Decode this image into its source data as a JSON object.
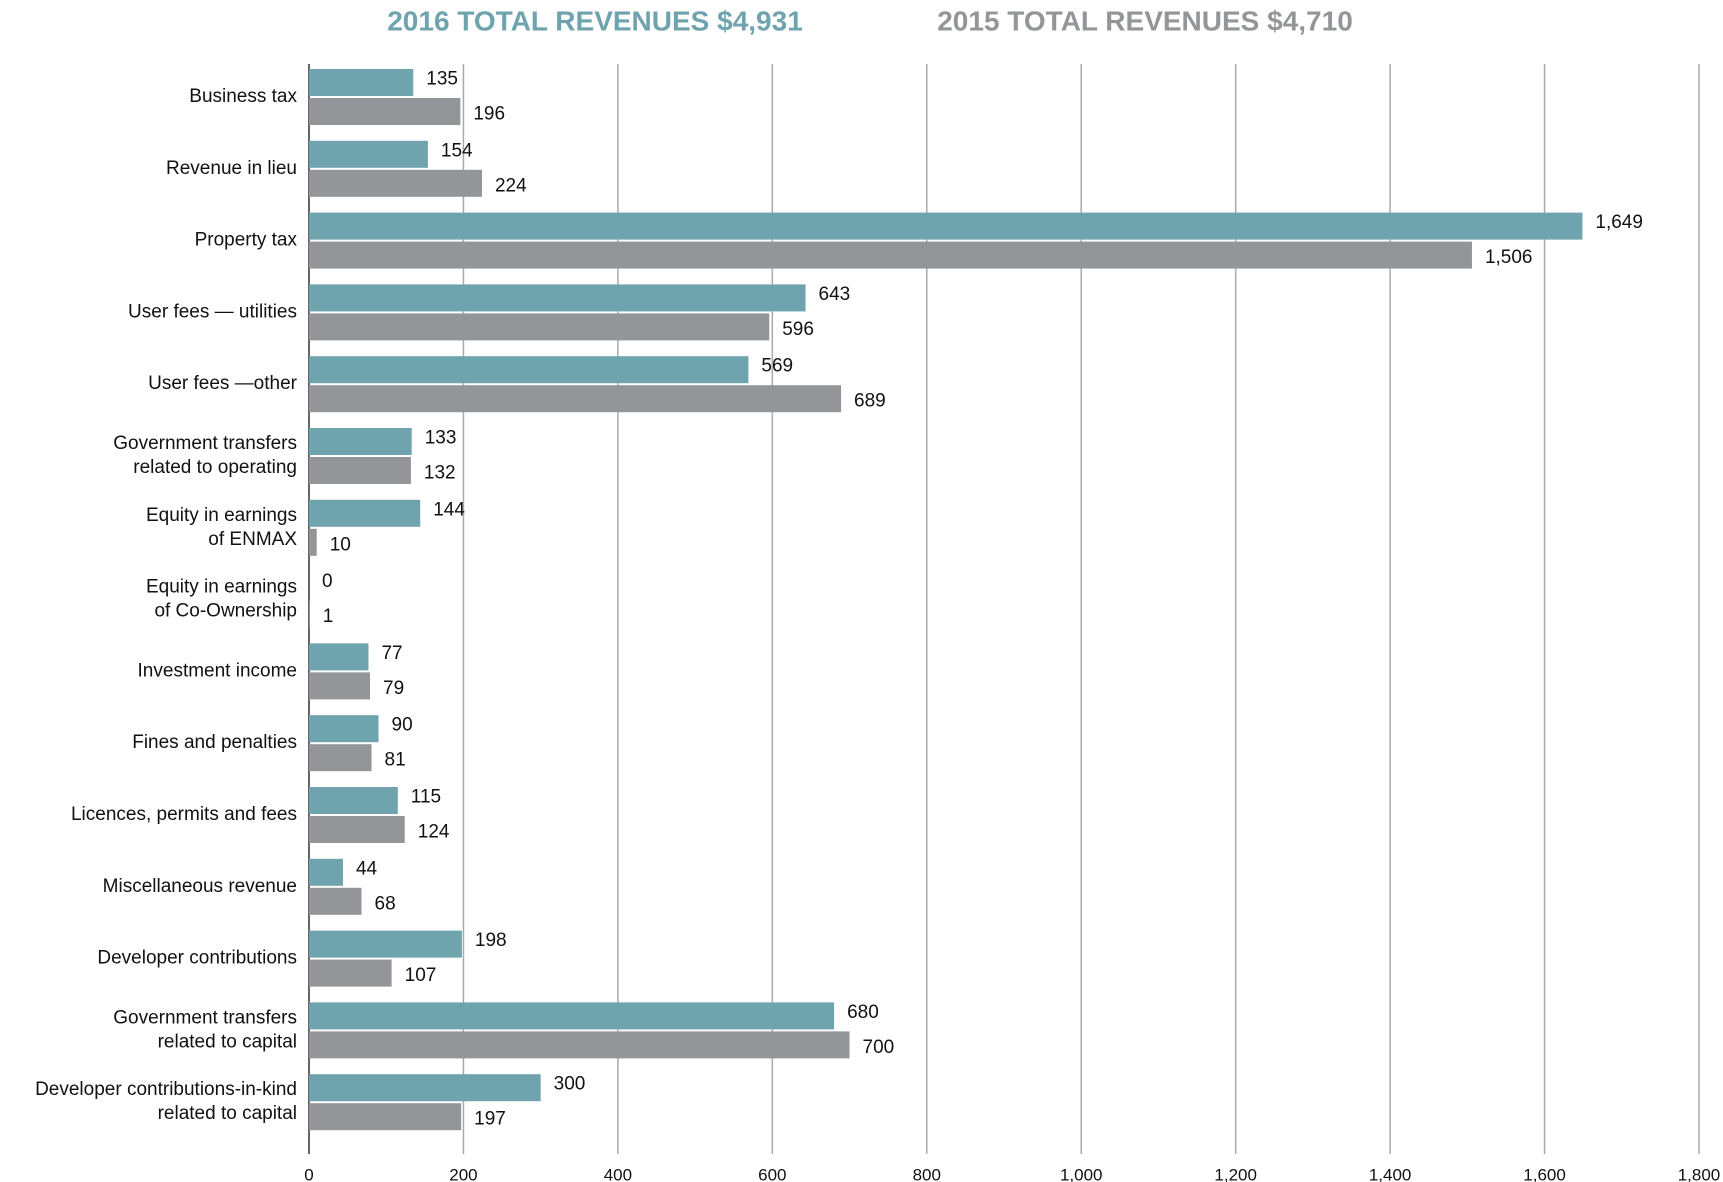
{
  "chart_data": {
    "type": "hbar",
    "categories": [
      "Business tax",
      "Revenue in lieu",
      "Property tax",
      "User fees — utilities",
      "User fees —other",
      "Government transfers\nrelated to operating",
      "Equity in earnings\nof ENMAX",
      "Equity in earnings\nof Co-Ownership",
      "Investment income",
      "Fines and penalties",
      "Licences, permits and fees",
      "Miscellaneous revenue",
      "Developer contributions",
      "Government transfers\nrelated to capital",
      "Developer contributions-in-kind\nrelated to capital"
    ],
    "series": [
      {
        "name": "2016 TOTAL REVENUES $4,931",
        "color": "#6fa3ae",
        "values": [
          135,
          154,
          1649,
          643,
          569,
          133,
          144,
          0,
          77,
          90,
          115,
          44,
          198,
          680,
          300
        ],
        "value_labels": [
          "135",
          "154",
          "1,649",
          "643",
          "569",
          "133",
          "144",
          "0",
          "77",
          "90",
          "115",
          "44",
          "198",
          "680",
          "300"
        ]
      },
      {
        "name": "2015 TOTAL REVENUES $4,710",
        "color": "#939598",
        "values": [
          196,
          224,
          1506,
          596,
          689,
          132,
          10,
          1,
          79,
          81,
          124,
          68,
          107,
          700,
          197
        ],
        "value_labels": [
          "196",
          "224",
          "1,506",
          "596",
          "689",
          "132",
          "10",
          "1",
          "79",
          "81",
          "124",
          "68",
          "107",
          "700",
          "197"
        ]
      }
    ],
    "xlim": [
      0,
      1800
    ],
    "xticks": [
      0,
      200,
      400,
      600,
      800,
      {
        "value": 1000,
        "label": "1,000"
      },
      {
        "value": 1200,
        "label": "1,200"
      },
      {
        "value": 1400,
        "label": "1,400"
      },
      {
        "value": 1600,
        "label": "1,600"
      },
      {
        "value": 1800,
        "label": "1,800"
      }
    ],
    "grid": true
  }
}
